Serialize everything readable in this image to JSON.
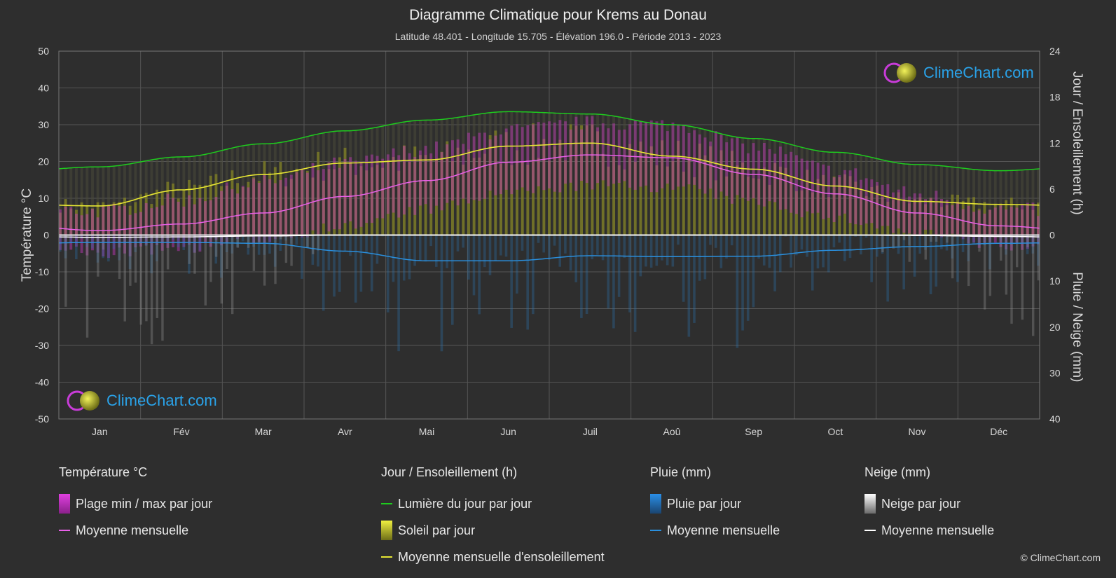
{
  "header": {
    "title": "Diagramme Climatique pour Krems au Donau",
    "subtitle": "Latitude 48.401 - Longitude 15.705 - Élévation 196.0 - Période 2013 - 2023"
  },
  "brand": {
    "logo_text": "ClimeChart.com",
    "copyright": "© ClimeChart.com"
  },
  "colors": {
    "background": "#2e2e2e",
    "daylight": "#1ecb1e",
    "sunshine_mean": "#e6e633",
    "temp_mean": "#e860e8",
    "rain_mean": "#2a8fdd",
    "snow_mean": "#ffffff",
    "temp_range": "#d838d0",
    "sun_band": "#a8a828",
    "rain_bar": "#2a6fa8",
    "snow_bar": "#8a8a8a"
  },
  "chart_data": {
    "type": "line",
    "categories": [
      "Jan",
      "Fév",
      "Mar",
      "Avr",
      "Mai",
      "Jun",
      "Juil",
      "Aoû",
      "Sep",
      "Oct",
      "Nov",
      "Déc"
    ],
    "axes": {
      "left": {
        "label": "Température °C",
        "min": -50,
        "max": 50,
        "ticks": [
          50,
          40,
          30,
          20,
          10,
          0,
          -10,
          -20,
          -30,
          -40,
          -50
        ]
      },
      "right_top": {
        "label": "Jour / Ensoleillement (h)",
        "min": 0,
        "max": 24,
        "ticks": [
          24,
          18,
          12,
          6,
          0
        ]
      },
      "right_bottom": {
        "label": "Pluie / Neige (mm)",
        "min": 0,
        "max": 40,
        "ticks": [
          0,
          10,
          20,
          30,
          40
        ]
      }
    },
    "grid": true,
    "series": [
      {
        "name": "Lumière du jour par jour",
        "axis": "right_top",
        "values": [
          8.9,
          10.2,
          11.9,
          13.6,
          15.0,
          16.1,
          15.8,
          14.4,
          12.6,
          10.8,
          9.2,
          8.4
        ]
      },
      {
        "name": "Moyenne mensuelle d'ensoleillement",
        "axis": "right_top",
        "values": [
          3.8,
          5.9,
          7.9,
          9.4,
          9.8,
          11.6,
          12.0,
          10.3,
          8.6,
          6.4,
          4.4,
          4.0
        ]
      },
      {
        "name": "Moyenne mensuelle",
        "group": "Température °C",
        "axis": "left",
        "values": [
          1.2,
          3.0,
          6.0,
          10.5,
          14.8,
          19.8,
          21.8,
          21.0,
          16.5,
          11.2,
          6.0,
          2.5
        ]
      },
      {
        "name": "Moyenne mensuelle",
        "group": "Pluie (mm)",
        "axis": "right_bottom",
        "values": [
          1.6,
          1.6,
          1.8,
          3.5,
          5.6,
          5.6,
          4.5,
          4.7,
          4.6,
          3.3,
          2.5,
          1.8
        ]
      },
      {
        "name": "Moyenne mensuelle",
        "group": "Neige (mm)",
        "axis": "right_bottom",
        "values": [
          0.5,
          0.4,
          0.2,
          0.0,
          0.0,
          0.0,
          0.0,
          0.0,
          0.0,
          0.0,
          0.1,
          0.3
        ]
      }
    ],
    "temp_range": {
      "name": "Plage min / max par jour",
      "min": [
        -3.5,
        -2.0,
        0.5,
        4.0,
        8.5,
        13.0,
        15.0,
        14.5,
        10.5,
        6.0,
        2.0,
        -1.5
      ],
      "max": [
        4.5,
        7.5,
        12.5,
        17.5,
        21.5,
        26.5,
        28.5,
        28.0,
        22.0,
        15.5,
        9.0,
        5.0
      ]
    }
  },
  "legend": {
    "groups": [
      {
        "title": "Température °C",
        "items": [
          {
            "label": "Plage min / max par jour",
            "kind": "box",
            "color": "#d838d0"
          },
          {
            "label": "Moyenne mensuelle",
            "kind": "line",
            "color": "#e860e8"
          }
        ]
      },
      {
        "title": "Jour / Ensoleillement (h)",
        "items": [
          {
            "label": "Lumière du jour par jour",
            "kind": "line",
            "color": "#1ecb1e"
          },
          {
            "label": "Soleil par jour",
            "kind": "box",
            "color": "#c8c832"
          },
          {
            "label": "Moyenne mensuelle d'ensoleillement",
            "kind": "line",
            "color": "#e6e633"
          }
        ]
      },
      {
        "title": "Pluie (mm)",
        "items": [
          {
            "label": "Pluie par jour",
            "kind": "box",
            "color": "#2a7fd0"
          },
          {
            "label": "Moyenne mensuelle",
            "kind": "line",
            "color": "#2a8fdd"
          }
        ]
      },
      {
        "title": "Neige (mm)",
        "items": [
          {
            "label": "Neige par jour",
            "kind": "box",
            "color": "#d0d0d0"
          },
          {
            "label": "Moyenne mensuelle",
            "kind": "line",
            "color": "#ffffff"
          }
        ]
      }
    ]
  }
}
